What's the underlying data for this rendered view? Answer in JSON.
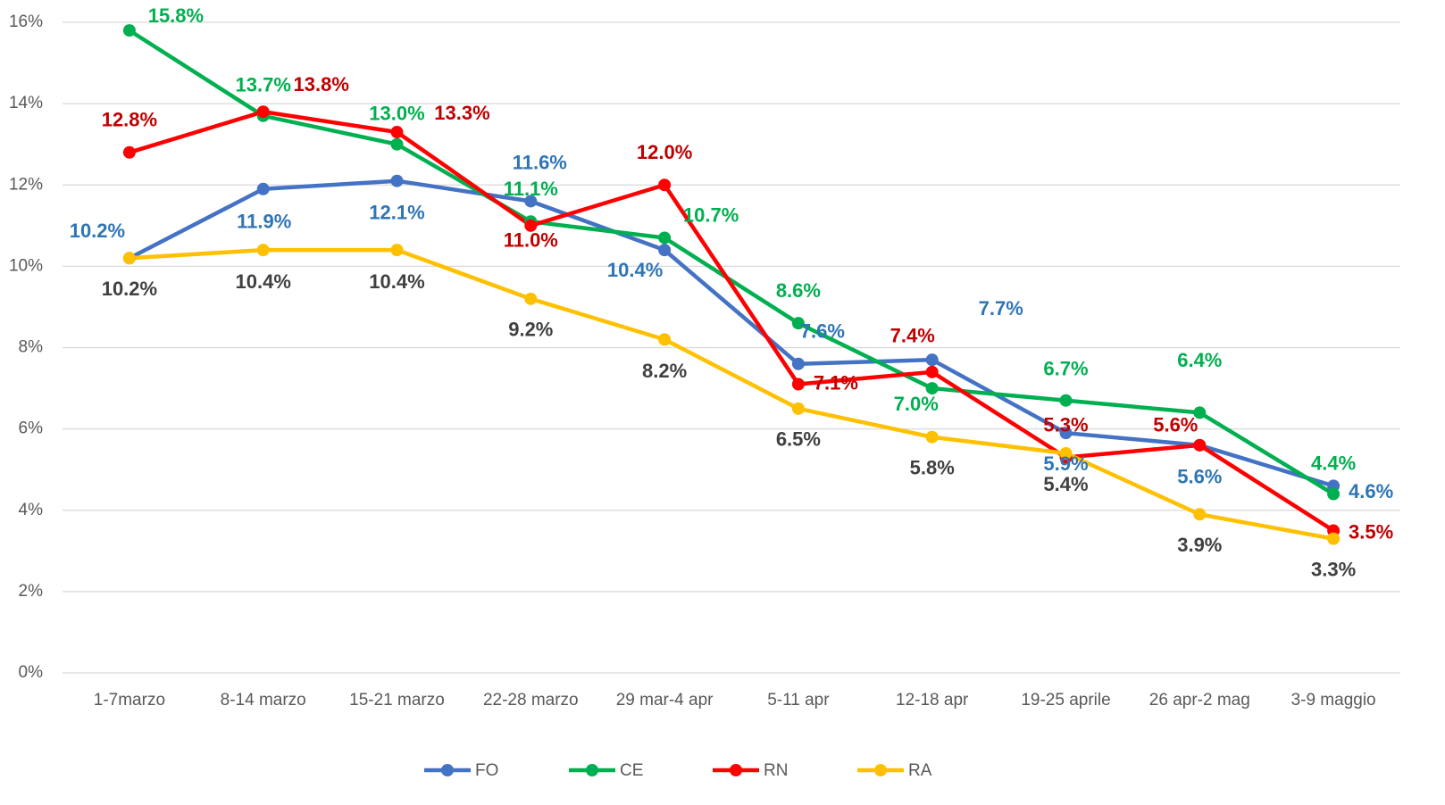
{
  "chart_data": {
    "type": "line",
    "categories": [
      "1-7marzo",
      "8-14 marzo",
      "15-21 marzo",
      "22-28 marzo",
      "29 mar-4 apr",
      "5-11 apr",
      "12-18 apr",
      "19-25 aprile",
      "26 apr-2 mag",
      "3-9 maggio"
    ],
    "series": [
      {
        "name": "FO",
        "color": "#4472c4",
        "values": [
          10.2,
          11.9,
          12.1,
          11.6,
          10.4,
          7.6,
          7.7,
          5.9,
          5.6,
          4.6
        ],
        "value_labels": [
          "10.2%",
          "11.9%",
          "12.1%",
          "11.6%",
          "10.4%",
          "7.6%",
          "7.7%",
          "5.9%",
          "5.6%",
          "4.6%"
        ]
      },
      {
        "name": "CE",
        "color": "#00b050",
        "values": [
          15.8,
          13.7,
          13.0,
          11.1,
          10.7,
          8.6,
          7.0,
          6.7,
          6.4,
          4.4
        ],
        "value_labels": [
          "15.8%",
          "13.7%",
          "13.0%",
          "11.1%",
          "10.7%",
          "8.6%",
          "7.0%",
          "6.7%",
          "6.4%",
          "4.4%"
        ]
      },
      {
        "name": "RN",
        "color": "#ff0000",
        "values": [
          12.8,
          13.8,
          13.3,
          11.0,
          12.0,
          7.1,
          7.4,
          5.3,
          5.6,
          3.5
        ],
        "value_labels": [
          "12.8%",
          "13.8%",
          "13.3%",
          "11.0%",
          "12.0%",
          "7.1%",
          "7.4%",
          "5.3%",
          "5.6%",
          "3.5%"
        ]
      },
      {
        "name": "RA",
        "color": "#ffc000",
        "values": [
          10.2,
          10.4,
          10.4,
          9.2,
          8.2,
          6.5,
          5.8,
          5.4,
          3.9,
          3.3
        ],
        "value_labels": [
          "10.2%",
          "10.4%",
          "10.4%",
          "9.2%",
          "8.2%",
          "6.5%",
          "5.8%",
          "5.4%",
          "3.9%",
          "3.3%"
        ]
      }
    ],
    "ylim": [
      0,
      16
    ],
    "yticks": [
      {
        "value": 0,
        "label": "0%"
      },
      {
        "value": 2,
        "label": "2%"
      },
      {
        "value": 4,
        "label": "4%"
      },
      {
        "value": 6,
        "label": "6%"
      },
      {
        "value": 8,
        "label": "8%"
      },
      {
        "value": 10,
        "label": "10%"
      },
      {
        "value": 12,
        "label": "12%"
      },
      {
        "value": 14,
        "label": "14%"
      },
      {
        "value": 16,
        "label": "16%"
      }
    ],
    "grid": true,
    "legend": "bottom"
  }
}
